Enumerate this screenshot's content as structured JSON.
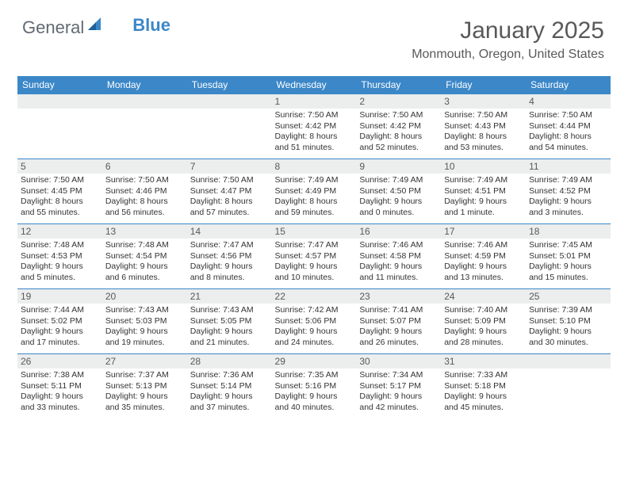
{
  "logo": {
    "text_general": "General",
    "text_blue": "Blue"
  },
  "title": "January 2025",
  "location": "Monmouth, Oregon, United States",
  "colors": {
    "header_bg": "#3b87c8",
    "daynum_bg": "#eceded",
    "border": "#3b87c8",
    "text_muted": "#595959"
  },
  "days_of_week": [
    "Sunday",
    "Monday",
    "Tuesday",
    "Wednesday",
    "Thursday",
    "Friday",
    "Saturday"
  ],
  "weeks": [
    [
      null,
      null,
      null,
      {
        "n": "1",
        "sr": "7:50 AM",
        "ss": "4:42 PM",
        "dl": "8 hours and 51 minutes."
      },
      {
        "n": "2",
        "sr": "7:50 AM",
        "ss": "4:42 PM",
        "dl": "8 hours and 52 minutes."
      },
      {
        "n": "3",
        "sr": "7:50 AM",
        "ss": "4:43 PM",
        "dl": "8 hours and 53 minutes."
      },
      {
        "n": "4",
        "sr": "7:50 AM",
        "ss": "4:44 PM",
        "dl": "8 hours and 54 minutes."
      }
    ],
    [
      {
        "n": "5",
        "sr": "7:50 AM",
        "ss": "4:45 PM",
        "dl": "8 hours and 55 minutes."
      },
      {
        "n": "6",
        "sr": "7:50 AM",
        "ss": "4:46 PM",
        "dl": "8 hours and 56 minutes."
      },
      {
        "n": "7",
        "sr": "7:50 AM",
        "ss": "4:47 PM",
        "dl": "8 hours and 57 minutes."
      },
      {
        "n": "8",
        "sr": "7:49 AM",
        "ss": "4:49 PM",
        "dl": "8 hours and 59 minutes."
      },
      {
        "n": "9",
        "sr": "7:49 AM",
        "ss": "4:50 PM",
        "dl": "9 hours and 0 minutes."
      },
      {
        "n": "10",
        "sr": "7:49 AM",
        "ss": "4:51 PM",
        "dl": "9 hours and 1 minute."
      },
      {
        "n": "11",
        "sr": "7:49 AM",
        "ss": "4:52 PM",
        "dl": "9 hours and 3 minutes."
      }
    ],
    [
      {
        "n": "12",
        "sr": "7:48 AM",
        "ss": "4:53 PM",
        "dl": "9 hours and 5 minutes."
      },
      {
        "n": "13",
        "sr": "7:48 AM",
        "ss": "4:54 PM",
        "dl": "9 hours and 6 minutes."
      },
      {
        "n": "14",
        "sr": "7:47 AM",
        "ss": "4:56 PM",
        "dl": "9 hours and 8 minutes."
      },
      {
        "n": "15",
        "sr": "7:47 AM",
        "ss": "4:57 PM",
        "dl": "9 hours and 10 minutes."
      },
      {
        "n": "16",
        "sr": "7:46 AM",
        "ss": "4:58 PM",
        "dl": "9 hours and 11 minutes."
      },
      {
        "n": "17",
        "sr": "7:46 AM",
        "ss": "4:59 PM",
        "dl": "9 hours and 13 minutes."
      },
      {
        "n": "18",
        "sr": "7:45 AM",
        "ss": "5:01 PM",
        "dl": "9 hours and 15 minutes."
      }
    ],
    [
      {
        "n": "19",
        "sr": "7:44 AM",
        "ss": "5:02 PM",
        "dl": "9 hours and 17 minutes."
      },
      {
        "n": "20",
        "sr": "7:43 AM",
        "ss": "5:03 PM",
        "dl": "9 hours and 19 minutes."
      },
      {
        "n": "21",
        "sr": "7:43 AM",
        "ss": "5:05 PM",
        "dl": "9 hours and 21 minutes."
      },
      {
        "n": "22",
        "sr": "7:42 AM",
        "ss": "5:06 PM",
        "dl": "9 hours and 24 minutes."
      },
      {
        "n": "23",
        "sr": "7:41 AM",
        "ss": "5:07 PM",
        "dl": "9 hours and 26 minutes."
      },
      {
        "n": "24",
        "sr": "7:40 AM",
        "ss": "5:09 PM",
        "dl": "9 hours and 28 minutes."
      },
      {
        "n": "25",
        "sr": "7:39 AM",
        "ss": "5:10 PM",
        "dl": "9 hours and 30 minutes."
      }
    ],
    [
      {
        "n": "26",
        "sr": "7:38 AM",
        "ss": "5:11 PM",
        "dl": "9 hours and 33 minutes."
      },
      {
        "n": "27",
        "sr": "7:37 AM",
        "ss": "5:13 PM",
        "dl": "9 hours and 35 minutes."
      },
      {
        "n": "28",
        "sr": "7:36 AM",
        "ss": "5:14 PM",
        "dl": "9 hours and 37 minutes."
      },
      {
        "n": "29",
        "sr": "7:35 AM",
        "ss": "5:16 PM",
        "dl": "9 hours and 40 minutes."
      },
      {
        "n": "30",
        "sr": "7:34 AM",
        "ss": "5:17 PM",
        "dl": "9 hours and 42 minutes."
      },
      {
        "n": "31",
        "sr": "7:33 AM",
        "ss": "5:18 PM",
        "dl": "9 hours and 45 minutes."
      },
      null
    ]
  ],
  "labels": {
    "sunrise": "Sunrise: ",
    "sunset": "Sunset: ",
    "daylight": "Daylight: "
  }
}
